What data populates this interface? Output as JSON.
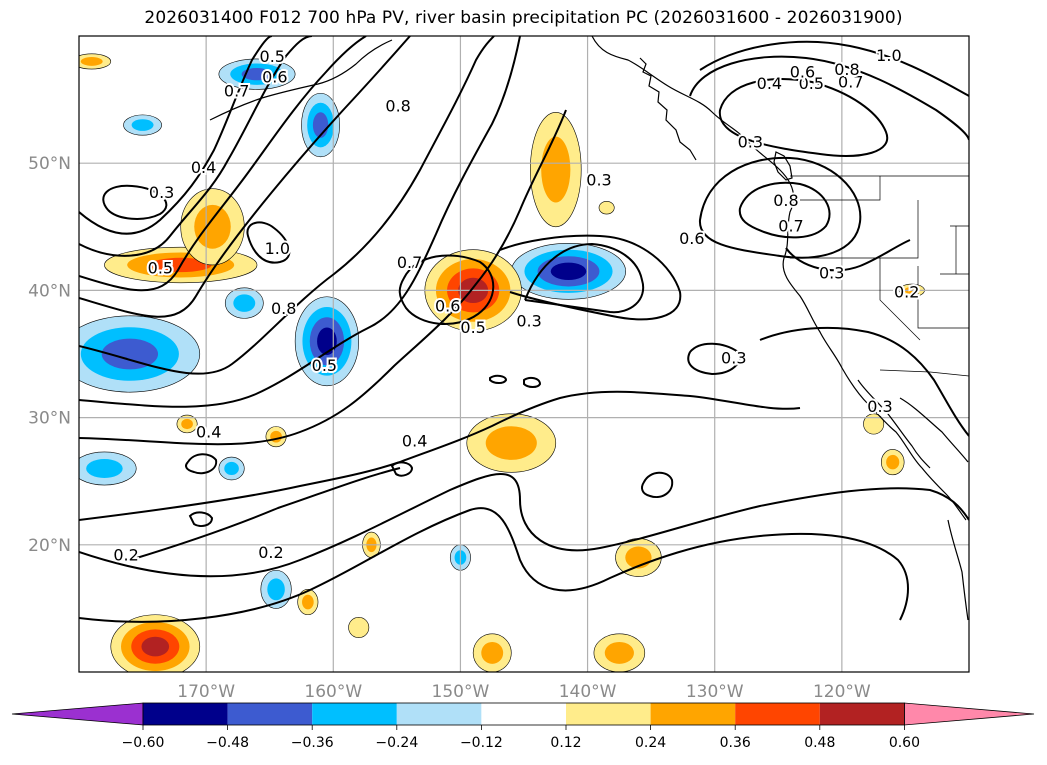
{
  "chart_data": {
    "type": "map-contour",
    "title": "2026031400 F012 700 hPa PV, river basin precipitation PC (2026031600 - 2026031900)",
    "lon_range": [
      -180,
      -110
    ],
    "lat_range": [
      10,
      60
    ],
    "lat_ticks": [
      {
        "value": 20,
        "label": "20°N"
      },
      {
        "value": 30,
        "label": "30°N"
      },
      {
        "value": 40,
        "label": "40°N"
      },
      {
        "value": 50,
        "label": "50°N"
      }
    ],
    "lon_ticks": [
      {
        "value": -170,
        "label": "170°W"
      },
      {
        "value": -160,
        "label": "160°W"
      },
      {
        "value": -150,
        "label": "150°W"
      },
      {
        "value": -140,
        "label": "140°W"
      },
      {
        "value": -130,
        "label": "130°W"
      },
      {
        "value": -120,
        "label": "120°W"
      }
    ],
    "colorbar": {
      "ticks": [
        "−0.60",
        "−0.48",
        "−0.36",
        "−0.24",
        "−0.12",
        "0.12",
        "0.24",
        "0.36",
        "0.48",
        "0.60"
      ],
      "bins": [
        {
          "range": "< -0.60",
          "color": "#9b30d0"
        },
        {
          "range": "-0.60 to -0.48",
          "color": "#00008b"
        },
        {
          "range": "-0.48 to -0.36",
          "color": "#3d5bd0"
        },
        {
          "range": "-0.36 to -0.24",
          "color": "#00bfff"
        },
        {
          "range": "-0.24 to -0.12",
          "color": "#b0e0f8"
        },
        {
          "range": "-0.12 to 0.12",
          "color": "#ffffff"
        },
        {
          "range": "0.12 to 0.24",
          "color": "#ffec8b"
        },
        {
          "range": "0.24 to 0.36",
          "color": "#ffa500"
        },
        {
          "range": "0.36 to 0.48",
          "color": "#ff4500"
        },
        {
          "range": "0.48 to 0.60",
          "color": "#b22222"
        },
        {
          "range": "> 0.60",
          "color": "#ff88aa"
        }
      ]
    },
    "shaded_regions": [
      {
        "lon": -166,
        "lat": 57,
        "rx": 3.0,
        "ry": 1.2,
        "value": -0.48
      },
      {
        "lon": -161,
        "lat": 53,
        "rx": 1.5,
        "ry": 2.5,
        "value": -0.4
      },
      {
        "lon": -175,
        "lat": 53,
        "rx": 1.5,
        "ry": 0.8,
        "value": -0.3
      },
      {
        "lon": -176,
        "lat": 35,
        "rx": 5.5,
        "ry": 3.0,
        "value": -0.45
      },
      {
        "lon": -160.5,
        "lat": 36,
        "rx": 2.5,
        "ry": 3.5,
        "value": -0.5
      },
      {
        "lon": -141.5,
        "lat": 41.5,
        "rx": 4.5,
        "ry": 2.2,
        "value": -0.55
      },
      {
        "lon": -178,
        "lat": 26,
        "rx": 2.5,
        "ry": 1.3,
        "value": -0.3
      },
      {
        "lon": -167,
        "lat": 39,
        "rx": 1.5,
        "ry": 1.2,
        "value": -0.3
      },
      {
        "lon": -168,
        "lat": 26,
        "rx": 1.0,
        "ry": 0.9,
        "value": -0.25
      },
      {
        "lon": -164.5,
        "lat": 16.5,
        "rx": 1.2,
        "ry": 1.5,
        "value": -0.3
      },
      {
        "lon": -150,
        "lat": 19,
        "rx": 0.8,
        "ry": 1.0,
        "value": -0.25
      },
      {
        "lon": -172,
        "lat": 42,
        "rx": 6.0,
        "ry": 1.4,
        "value": 0.4
      },
      {
        "lon": -169.5,
        "lat": 45,
        "rx": 2.5,
        "ry": 3.0,
        "value": 0.3
      },
      {
        "lon": -149,
        "lat": 40,
        "rx": 3.8,
        "ry": 3.2,
        "value": 0.5
      },
      {
        "lon": -142.5,
        "lat": 49.5,
        "rx": 2.0,
        "ry": 4.5,
        "value": 0.3
      },
      {
        "lon": -174,
        "lat": 12,
        "rx": 3.5,
        "ry": 2.5,
        "value": 0.5
      },
      {
        "lon": -146,
        "lat": 28,
        "rx": 3.5,
        "ry": 2.3,
        "value": 0.35
      },
      {
        "lon": -136,
        "lat": 19,
        "rx": 1.8,
        "ry": 1.5,
        "value": 0.35
      },
      {
        "lon": -137.5,
        "lat": 11.5,
        "rx": 2.0,
        "ry": 1.5,
        "value": 0.3
      },
      {
        "lon": -147.5,
        "lat": 11.5,
        "rx": 1.5,
        "ry": 1.5,
        "value": 0.3
      },
      {
        "lon": -138.5,
        "lat": 46.5,
        "rx": 0.6,
        "ry": 0.5,
        "value": 0.2
      },
      {
        "lon": -114.5,
        "lat": 40,
        "rx": 1.0,
        "ry": 0.5,
        "value": 0.28
      },
      {
        "lon": -116,
        "lat": 26.5,
        "rx": 0.9,
        "ry": 1.0,
        "value": 0.3
      },
      {
        "lon": -117.5,
        "lat": 29.5,
        "rx": 0.8,
        "ry": 0.8,
        "value": 0.22
      },
      {
        "lon": -171.5,
        "lat": 29.5,
        "rx": 0.8,
        "ry": 0.7,
        "value": 0.28
      },
      {
        "lon": -164.5,
        "lat": 28.5,
        "rx": 0.8,
        "ry": 0.8,
        "value": 0.25
      },
      {
        "lon": -157,
        "lat": 20,
        "rx": 0.7,
        "ry": 1.0,
        "value": 0.3
      },
      {
        "lon": -162,
        "lat": 15.5,
        "rx": 0.8,
        "ry": 1.0,
        "value": 0.3
      },
      {
        "lon": -158,
        "lat": 13.5,
        "rx": 0.8,
        "ry": 0.8,
        "value": 0.22
      },
      {
        "lon": -179,
        "lat": 58,
        "rx": 1.5,
        "ry": 0.6,
        "value": 0.28
      }
    ],
    "contour_labels": [
      {
        "text": "0.5",
        "lon": -164.8,
        "lat": 58.3
      },
      {
        "text": "0.6",
        "lon": -164.6,
        "lat": 56.7
      },
      {
        "text": "0.7",
        "lon": -167.6,
        "lat": 55.6
      },
      {
        "text": "0.8",
        "lon": -154.9,
        "lat": 54.4
      },
      {
        "text": "0.3",
        "lon": -173.5,
        "lat": 47.6
      },
      {
        "text": "0.4",
        "lon": -170.2,
        "lat": 49.6
      },
      {
        "text": "0.5",
        "lon": -173.6,
        "lat": 41.7
      },
      {
        "text": "1.0",
        "lon": -164.4,
        "lat": 43.2
      },
      {
        "text": "0.7",
        "lon": -154.0,
        "lat": 42.1
      },
      {
        "text": "0.8",
        "lon": -163.9,
        "lat": 38.5
      },
      {
        "text": "0.6",
        "lon": -151.0,
        "lat": 38.7
      },
      {
        "text": "0.5",
        "lon": -160.7,
        "lat": 34.0
      },
      {
        "text": "0.5",
        "lon": -149.0,
        "lat": 37.0
      },
      {
        "text": "0.3",
        "lon": -144.6,
        "lat": 37.5
      },
      {
        "text": "0.3",
        "lon": -139.1,
        "lat": 48.6
      },
      {
        "text": "0.6",
        "lon": -131.8,
        "lat": 44.0
      },
      {
        "text": "0.3",
        "lon": -127.2,
        "lat": 51.6
      },
      {
        "text": "0.4",
        "lon": -125.7,
        "lat": 56.2
      },
      {
        "text": "0.5",
        "lon": -122.4,
        "lat": 56.2
      },
      {
        "text": "0.6",
        "lon": -123.1,
        "lat": 57.1
      },
      {
        "text": "0.7",
        "lon": -119.3,
        "lat": 56.3
      },
      {
        "text": "0.8",
        "lon": -119.6,
        "lat": 57.3
      },
      {
        "text": "1.0",
        "lon": -116.3,
        "lat": 58.4
      },
      {
        "text": "0.8",
        "lon": -124.4,
        "lat": 47.0
      },
      {
        "text": "0.7",
        "lon": -124.0,
        "lat": 45.0
      },
      {
        "text": "0.3",
        "lon": -120.8,
        "lat": 41.3
      },
      {
        "text": "0.2",
        "lon": -114.9,
        "lat": 39.8
      },
      {
        "text": "0.3",
        "lon": -117.0,
        "lat": 30.8
      },
      {
        "text": "0.3",
        "lon": -128.5,
        "lat": 34.6
      },
      {
        "text": "0.4",
        "lon": -169.8,
        "lat": 28.8
      },
      {
        "text": "0.4",
        "lon": -153.6,
        "lat": 28.1
      },
      {
        "text": "0.2",
        "lon": -164.9,
        "lat": 19.3
      },
      {
        "text": "0.2",
        "lon": -176.3,
        "lat": 19.1
      }
    ]
  }
}
